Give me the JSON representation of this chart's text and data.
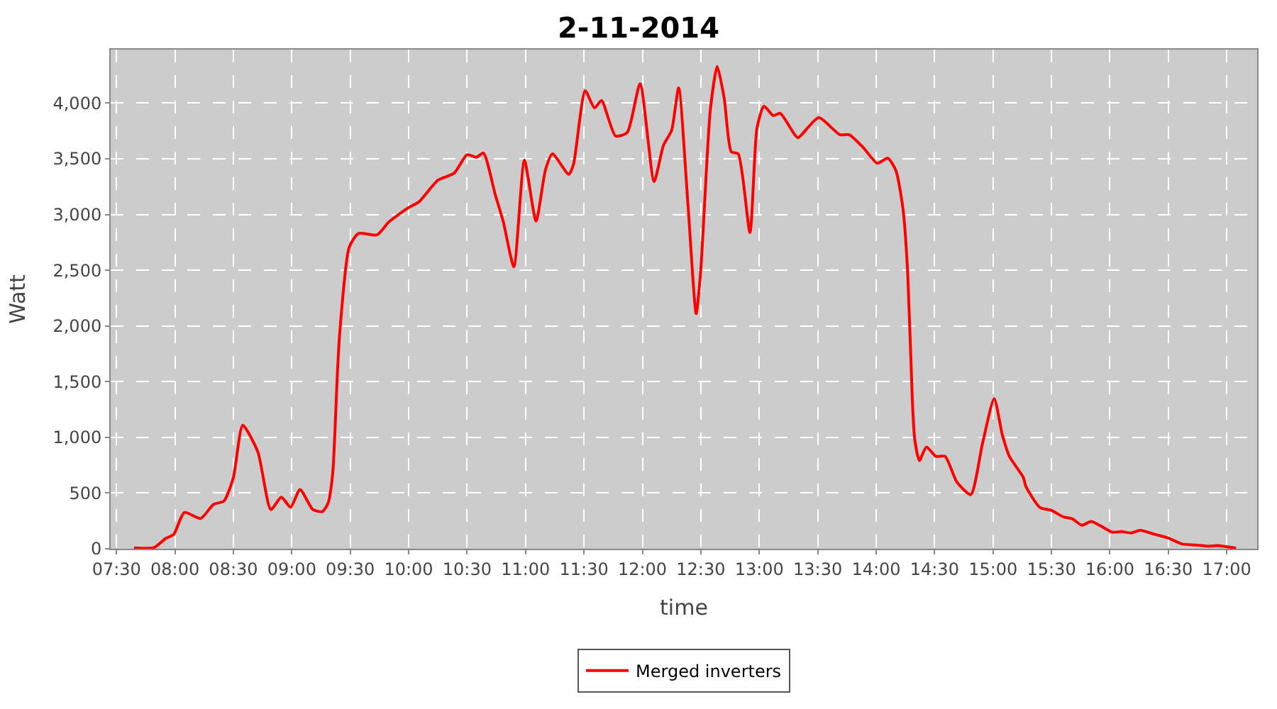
{
  "chart_data": {
    "type": "line",
    "title": "2-11-2014",
    "xlabel": "time",
    "ylabel": "Watt",
    "x": [
      7.65,
      7.82,
      7.92,
      7.99,
      8.08,
      8.22,
      8.33,
      8.42,
      8.5,
      8.58,
      8.71,
      8.82,
      8.91,
      8.99,
      9.07,
      9.18,
      9.26,
      9.31,
      9.35,
      9.39,
      9.41,
      9.49,
      9.57,
      9.73,
      9.83,
      9.99,
      10.09,
      10.25,
      10.39,
      10.5,
      10.58,
      10.64,
      10.74,
      10.81,
      10.9,
      10.99,
      11.09,
      11.17,
      11.23,
      11.37,
      11.41,
      11.51,
      11.59,
      11.65,
      11.77,
      11.87,
      11.98,
      12.1,
      12.18,
      12.25,
      12.31,
      12.39,
      12.46,
      12.5,
      12.58,
      12.64,
      12.7,
      12.76,
      12.82,
      12.92,
      12.98,
      13.04,
      13.12,
      13.18,
      13.33,
      13.41,
      13.51,
      13.69,
      13.77,
      13.89,
      14.01,
      14.1,
      14.17,
      14.23,
      14.27,
      14.31,
      14.33,
      14.37,
      14.43,
      14.51,
      14.59,
      14.69,
      14.81,
      14.91,
      15.01,
      15.08,
      15.14,
      15.26,
      15.28,
      15.4,
      15.5,
      15.6,
      15.68,
      15.76,
      15.84,
      15.92,
      16.02,
      16.1,
      16.18,
      16.26,
      16.38,
      16.5,
      16.62,
      16.74,
      16.84,
      16.92,
      17.08
    ],
    "series": [
      {
        "name": "Merged inverters",
        "color": "#ff0000",
        "values": [
          8,
          10,
          92,
          130,
          326,
          272,
          398,
          429,
          639,
          1109,
          868,
          352,
          463,
          372,
          532,
          352,
          333,
          409,
          677,
          1576,
          1938,
          2703,
          2830,
          2818,
          2933,
          3056,
          3116,
          3308,
          3372,
          3537,
          3514,
          3552,
          3182,
          2933,
          2531,
          3487,
          2941,
          3400,
          3544,
          3361,
          3449,
          4111,
          3957,
          4023,
          3705,
          3736,
          4175,
          3296,
          3621,
          3755,
          4137,
          3085,
          2110,
          2512,
          3927,
          4329,
          4042,
          3564,
          3544,
          2838,
          3774,
          3973,
          3888,
          3908,
          3690,
          3774,
          3870,
          3716,
          3716,
          3601,
          3460,
          3506,
          3392,
          3048,
          2474,
          1327,
          983,
          791,
          914,
          830,
          830,
          601,
          486,
          945,
          1347,
          1021,
          830,
          639,
          562,
          372,
          344,
          287,
          268,
          211,
          245,
          206,
          149,
          154,
          142,
          165,
          131,
          96,
          42,
          34,
          23,
          28,
          5
        ]
      }
    ],
    "xlim": [
      7.45,
      17.26
    ],
    "ylim": [
      0,
      4480
    ],
    "xticks": [
      {
        "value": 7.5,
        "label": "07:30"
      },
      {
        "value": 8,
        "label": "08:00"
      },
      {
        "value": 8.5,
        "label": "08:30"
      },
      {
        "value": 9,
        "label": "09:00"
      },
      {
        "value": 9.5,
        "label": "09:30"
      },
      {
        "value": 10,
        "label": "10:00"
      },
      {
        "value": 10.5,
        "label": "10:30"
      },
      {
        "value": 11,
        "label": "11:00"
      },
      {
        "value": 11.5,
        "label": "11:30"
      },
      {
        "value": 12,
        "label": "12:00"
      },
      {
        "value": 12.5,
        "label": "12:30"
      },
      {
        "value": 13,
        "label": "13:00"
      },
      {
        "value": 13.5,
        "label": "13:30"
      },
      {
        "value": 14,
        "label": "14:00"
      },
      {
        "value": 14.5,
        "label": "14:30"
      },
      {
        "value": 15,
        "label": "15:00"
      },
      {
        "value": 15.5,
        "label": "15:30"
      },
      {
        "value": 16,
        "label": "16:00"
      },
      {
        "value": 16.5,
        "label": "16:30"
      },
      {
        "value": 17,
        "label": "17:00"
      }
    ],
    "yticks": [
      0,
      500,
      {
        "value": 1000,
        "label": "1,000"
      },
      {
        "value": 1500,
        "label": "1,500"
      },
      {
        "value": 2000,
        "label": "2,000"
      },
      {
        "value": 2500,
        "label": "2,500"
      },
      {
        "value": 3000,
        "label": "3,000"
      },
      {
        "value": 3500,
        "label": "3,500"
      },
      {
        "value": 4000,
        "label": "4,000"
      }
    ],
    "grid": true,
    "legend": "bottom",
    "marker": "none",
    "line_style": "solid"
  }
}
